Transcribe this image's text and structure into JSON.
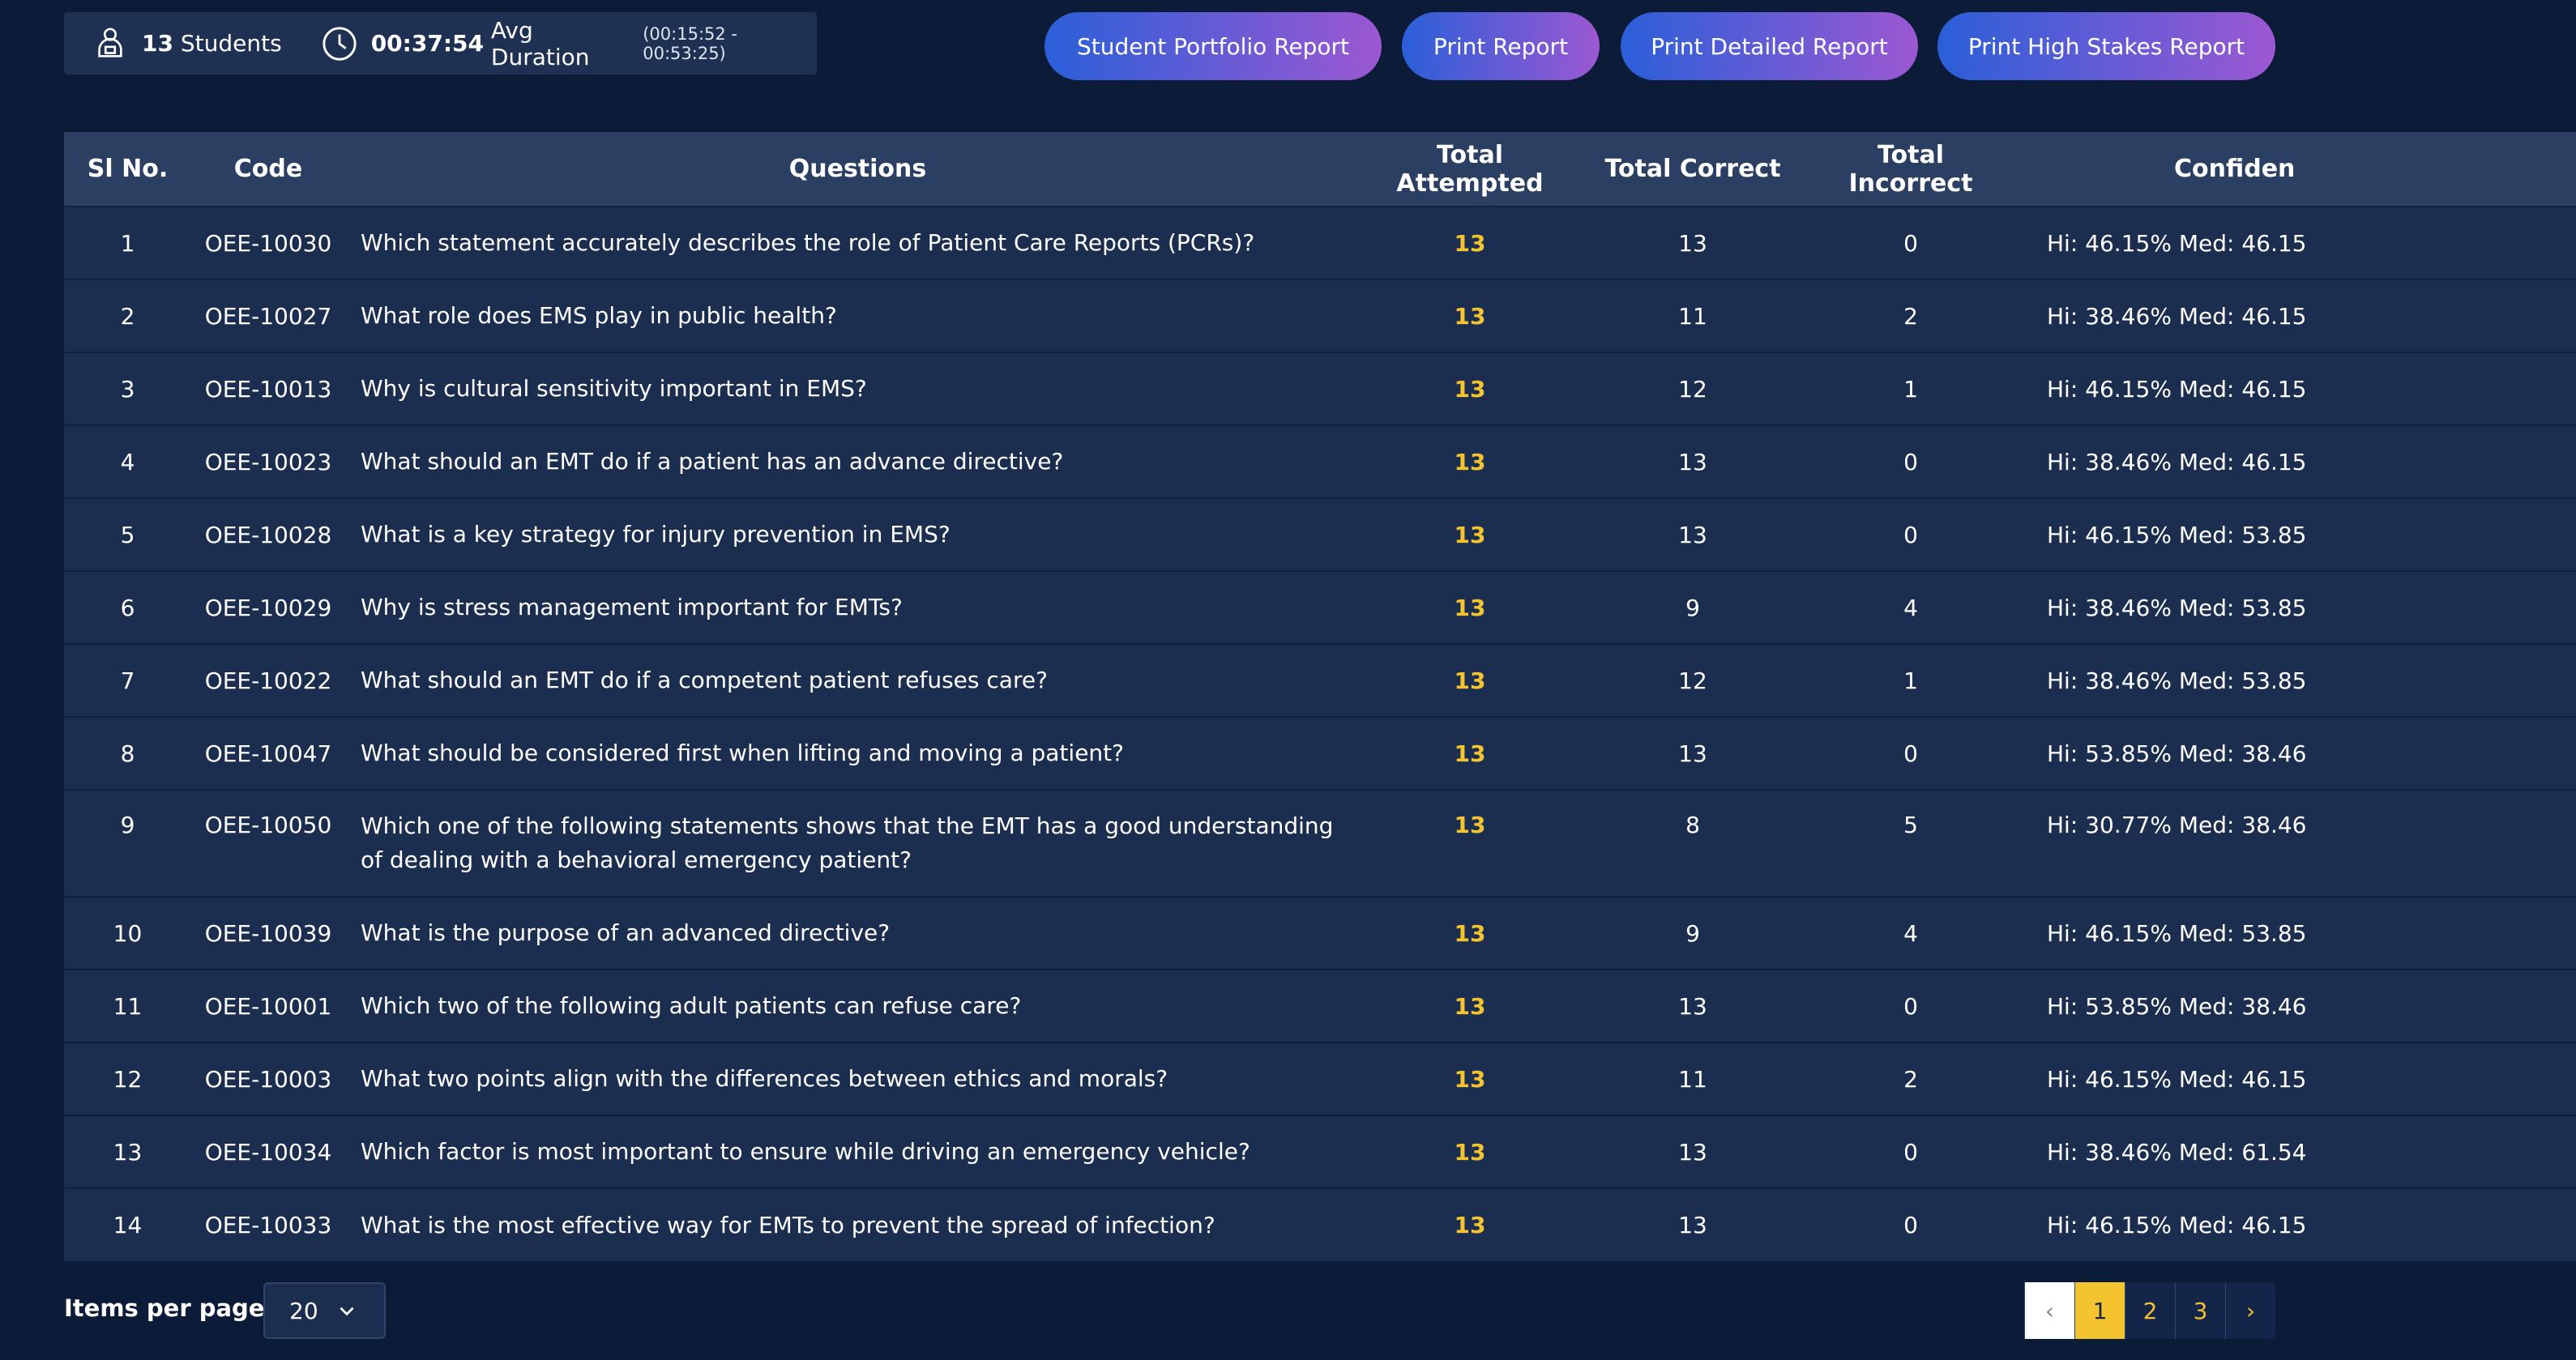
{
  "stats": {
    "students_count": "13",
    "students_label": "Students",
    "avg_duration": "00:37:54",
    "avg_label": "Avg Duration",
    "duration_range": "(00:15:52 - 00:53:25)"
  },
  "buttons": [
    "Student Portfolio Report",
    "Print Report",
    "Print Detailed Report",
    "Print High Stakes Report"
  ],
  "table": {
    "headers": [
      "Sl No.",
      "Code",
      "Questions",
      "Total Attempted",
      "Total Correct",
      "Total Incorrect",
      "Confiden"
    ],
    "rows": [
      [
        1,
        "OEE-10030",
        "Which statement accurately describes the role of Patient Care Reports (PCRs)?",
        13,
        13,
        0,
        "Hi: 46.15% Med: 46.15"
      ],
      [
        2,
        "OEE-10027",
        "What role does EMS play in public health?",
        13,
        11,
        2,
        "Hi: 38.46% Med: 46.15"
      ],
      [
        3,
        "OEE-10013",
        "Why is cultural sensitivity important in EMS?",
        13,
        12,
        1,
        "Hi: 46.15% Med: 46.15"
      ],
      [
        4,
        "OEE-10023",
        "What should an EMT do if a patient has an advance directive?",
        13,
        13,
        0,
        "Hi: 38.46% Med: 46.15"
      ],
      [
        5,
        "OEE-10028",
        "What is a key strategy for injury prevention in EMS?",
        13,
        13,
        0,
        "Hi: 46.15% Med: 53.85"
      ],
      [
        6,
        "OEE-10029",
        "Why is stress management important for EMTs?",
        13,
        9,
        4,
        "Hi: 38.46% Med: 53.85"
      ],
      [
        7,
        "OEE-10022",
        "What should an EMT do if a competent patient refuses care?",
        13,
        12,
        1,
        "Hi: 38.46% Med: 53.85"
      ],
      [
        8,
        "OEE-10047",
        "What should be considered first when lifting and moving a patient?",
        13,
        13,
        0,
        "Hi: 53.85% Med: 38.46"
      ],
      [
        9,
        "OEE-10050",
        "Which one of the following statements shows that the EMT has a good understanding of dealing with a behavioral emergency patient?",
        13,
        8,
        5,
        "Hi: 30.77% Med: 38.46"
      ],
      [
        10,
        "OEE-10039",
        "What is the purpose of an advanced directive?",
        13,
        9,
        4,
        "Hi: 46.15% Med: 53.85"
      ],
      [
        11,
        "OEE-10001",
        "Which two of the following adult patients can refuse care?",
        13,
        13,
        0,
        "Hi: 53.85% Med: 38.46"
      ],
      [
        12,
        "OEE-10003",
        "What two points align with the differences between ethics and morals?",
        13,
        11,
        2,
        "Hi: 46.15% Med: 46.15"
      ],
      [
        13,
        "OEE-10034",
        "Which factor is most important to ensure while driving an emergency vehicle?",
        13,
        13,
        0,
        "Hi: 38.46% Med: 61.54"
      ],
      [
        14,
        "OEE-10033",
        "What is the most effective way for EMTs to prevent the spread of infection?",
        13,
        13,
        0,
        "Hi: 46.15% Med: 46.15"
      ]
    ]
  },
  "footer": {
    "items_label": "Items per page",
    "page_size": "20",
    "pages": [
      "‹",
      "1",
      "2",
      "3",
      "›"
    ]
  }
}
